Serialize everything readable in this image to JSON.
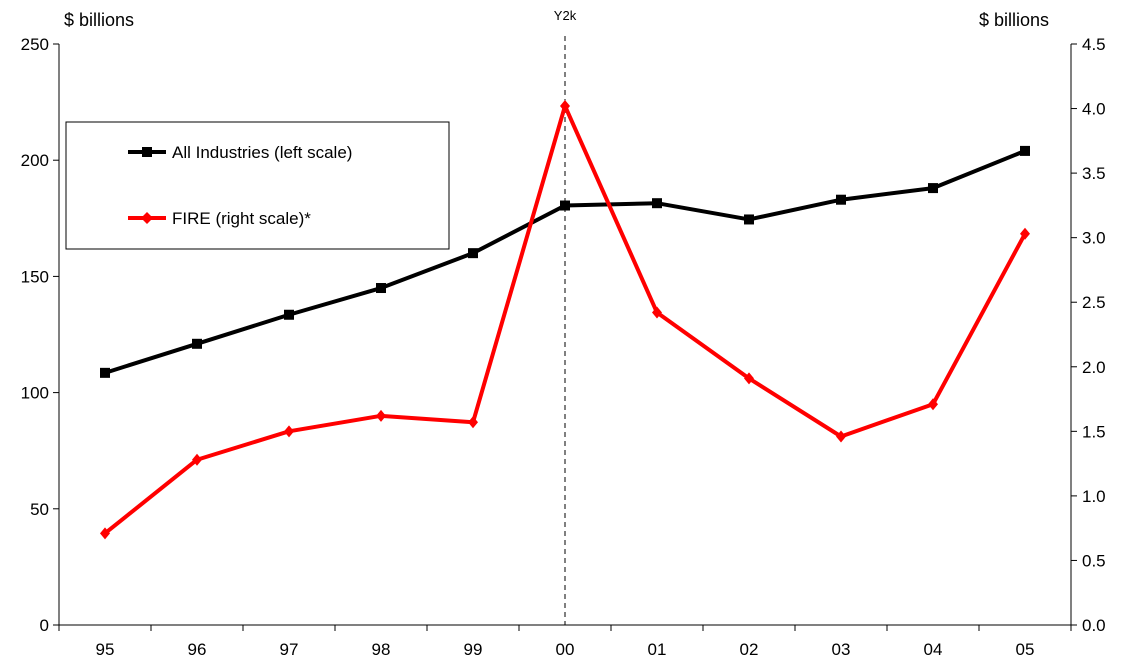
{
  "chart_data": {
    "type": "line",
    "categories": [
      "95",
      "96",
      "97",
      "98",
      "99",
      "00",
      "01",
      "02",
      "03",
      "04",
      "05"
    ],
    "left_axis": {
      "unit_label": "$ billions",
      "range": [
        0,
        250
      ],
      "ticks": [
        0,
        50,
        100,
        150,
        200,
        250
      ],
      "tick_labels": [
        "0",
        "50",
        "100",
        "150",
        "200",
        "250"
      ]
    },
    "right_axis": {
      "unit_label": "$ billions",
      "range": [
        0,
        4.5
      ],
      "ticks": [
        0,
        0.5,
        1.0,
        1.5,
        2.0,
        2.5,
        3.0,
        3.5,
        4.0,
        4.5
      ],
      "tick_labels": [
        "0.0",
        "0.5",
        "1.0",
        "1.5",
        "2.0",
        "2.5",
        "3.0",
        "3.5",
        "4.0",
        "4.5"
      ]
    },
    "series": [
      {
        "name": "All Industries (left scale)",
        "axis": "left",
        "color": "#000000",
        "marker": "square",
        "values": [
          108.5,
          121,
          133.5,
          145,
          160,
          180.5,
          181.5,
          174.5,
          183,
          188,
          204
        ]
      },
      {
        "name": "FIRE (right scale)*",
        "axis": "right",
        "color": "#ff0000",
        "marker": "diamond",
        "values": [
          0.71,
          1.28,
          1.5,
          1.62,
          1.57,
          4.02,
          2.42,
          1.91,
          1.46,
          1.71,
          3.03
        ]
      }
    ],
    "annotation": {
      "label": "Y2k",
      "at_category": "00"
    },
    "legend_position": "upper-left",
    "grid": false
  }
}
